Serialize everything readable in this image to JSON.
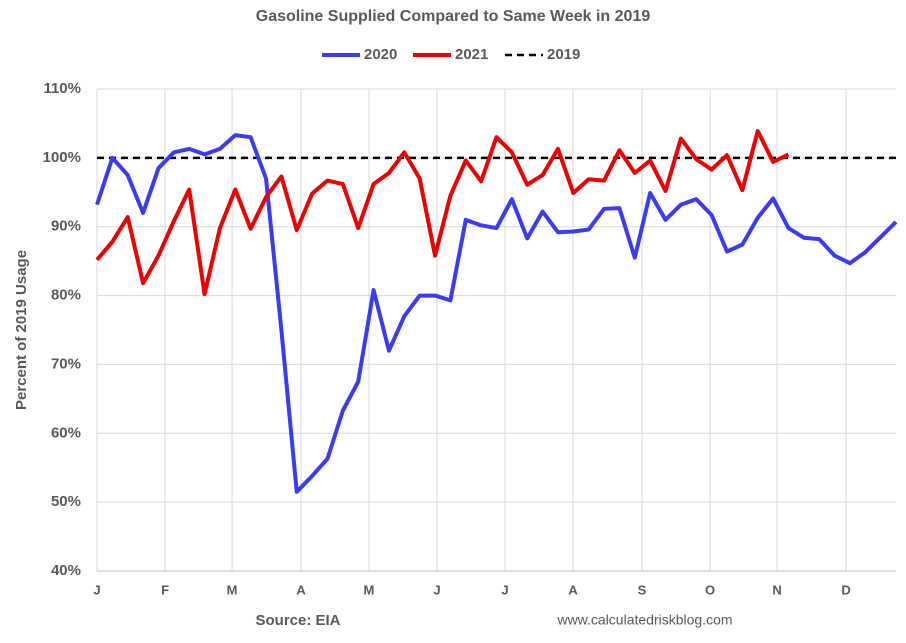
{
  "chart_data": {
    "type": "line",
    "title": "Gasoline Supplied Compared to Same Week in 2019",
    "y_label": "Percent of 2019 Usage",
    "source": "Source: EIA",
    "credit": "www.calculatedriskblog.com",
    "x": [
      1,
      2,
      3,
      4,
      5,
      6,
      7,
      8,
      9,
      10,
      11,
      12,
      13,
      14,
      15,
      16,
      17,
      18,
      19,
      20,
      21,
      22,
      23,
      24,
      25,
      26,
      27,
      28,
      29,
      30,
      31,
      32,
      33,
      34,
      35,
      36,
      37,
      38,
      39,
      40,
      41,
      42,
      43,
      44,
      45,
      46,
      47,
      48,
      49,
      50,
      51,
      52,
      53
    ],
    "xlim": [
      1,
      53
    ],
    "xticks": [
      {
        "value": 1,
        "label": "J"
      },
      {
        "value": 5.43,
        "label": "F"
      },
      {
        "value": 9.79,
        "label": "M"
      },
      {
        "value": 14.28,
        "label": "A"
      },
      {
        "value": 18.7,
        "label": "M"
      },
      {
        "value": 23.13,
        "label": "J"
      },
      {
        "value": 27.55,
        "label": "J"
      },
      {
        "value": 31.98,
        "label": "A"
      },
      {
        "value": 36.47,
        "label": "S"
      },
      {
        "value": 40.9,
        "label": "O"
      },
      {
        "value": 45.26,
        "label": "N"
      },
      {
        "value": 49.75,
        "label": "D"
      }
    ],
    "ylim": [
      40,
      110
    ],
    "yticks": [
      {
        "value": 40,
        "label": "40%"
      },
      {
        "value": 50,
        "label": "50%"
      },
      {
        "value": 60,
        "label": "60%"
      },
      {
        "value": 70,
        "label": "70%"
      },
      {
        "value": 80,
        "label": "80%"
      },
      {
        "value": 90,
        "label": "90%"
      },
      {
        "value": 100,
        "label": "100%"
      },
      {
        "value": 110,
        "label": "110%"
      }
    ],
    "grid": true,
    "legend": "top",
    "series": [
      {
        "name": "2020",
        "color": "#3b3bf5",
        "values": [
          93.2,
          100,
          97.5,
          92,
          98.5,
          100.8,
          101.3,
          100.5,
          101.3,
          103.3,
          103,
          97,
          75,
          51.5,
          53.8,
          56.3,
          63.3,
          67.5,
          80.8,
          72,
          77,
          80,
          80,
          79.3,
          91,
          90.2,
          89.8,
          94,
          88.3,
          92.2,
          89.2,
          89.3,
          89.6,
          92.6,
          92.7,
          85.5,
          94.9,
          91,
          93.2,
          94,
          91.7,
          86.4,
          87.4,
          91.3,
          94.1,
          89.8,
          88.4,
          88.2,
          85.8,
          84.7,
          86.3,
          88.5,
          90.7
        ]
      },
      {
        "name": "2021",
        "color": "#f00000",
        "values": [
          85.2,
          87.8,
          91.4,
          81.8,
          85.8,
          90.8,
          95.4,
          80.2,
          89.8,
          95.4,
          89.7,
          94.3,
          97.3,
          89.5,
          94.8,
          96.7,
          96.2,
          89.8,
          96.2,
          97.8,
          100.8,
          97,
          85.8,
          94.5,
          99.6,
          96.6,
          103,
          100.8,
          96.1,
          97.5,
          101.3,
          94.9,
          96.9,
          96.7,
          101.1,
          97.8,
          99.6,
          95.2,
          102.8,
          99.8,
          98.3,
          100.4,
          95.3,
          103.9,
          99.4,
          100.5,
          null,
          null,
          null,
          null,
          null,
          null,
          null
        ]
      },
      {
        "name": "2019",
        "color": "#000000",
        "dash": true,
        "values": [
          100,
          100,
          100,
          100,
          100,
          100,
          100,
          100,
          100,
          100,
          100,
          100,
          100,
          100,
          100,
          100,
          100,
          100,
          100,
          100,
          100,
          100,
          100,
          100,
          100,
          100,
          100,
          100,
          100,
          100,
          100,
          100,
          100,
          100,
          100,
          100,
          100,
          100,
          100,
          100,
          100,
          100,
          100,
          100,
          100,
          100,
          100,
          100,
          100,
          100,
          100,
          100,
          100
        ]
      }
    ]
  }
}
